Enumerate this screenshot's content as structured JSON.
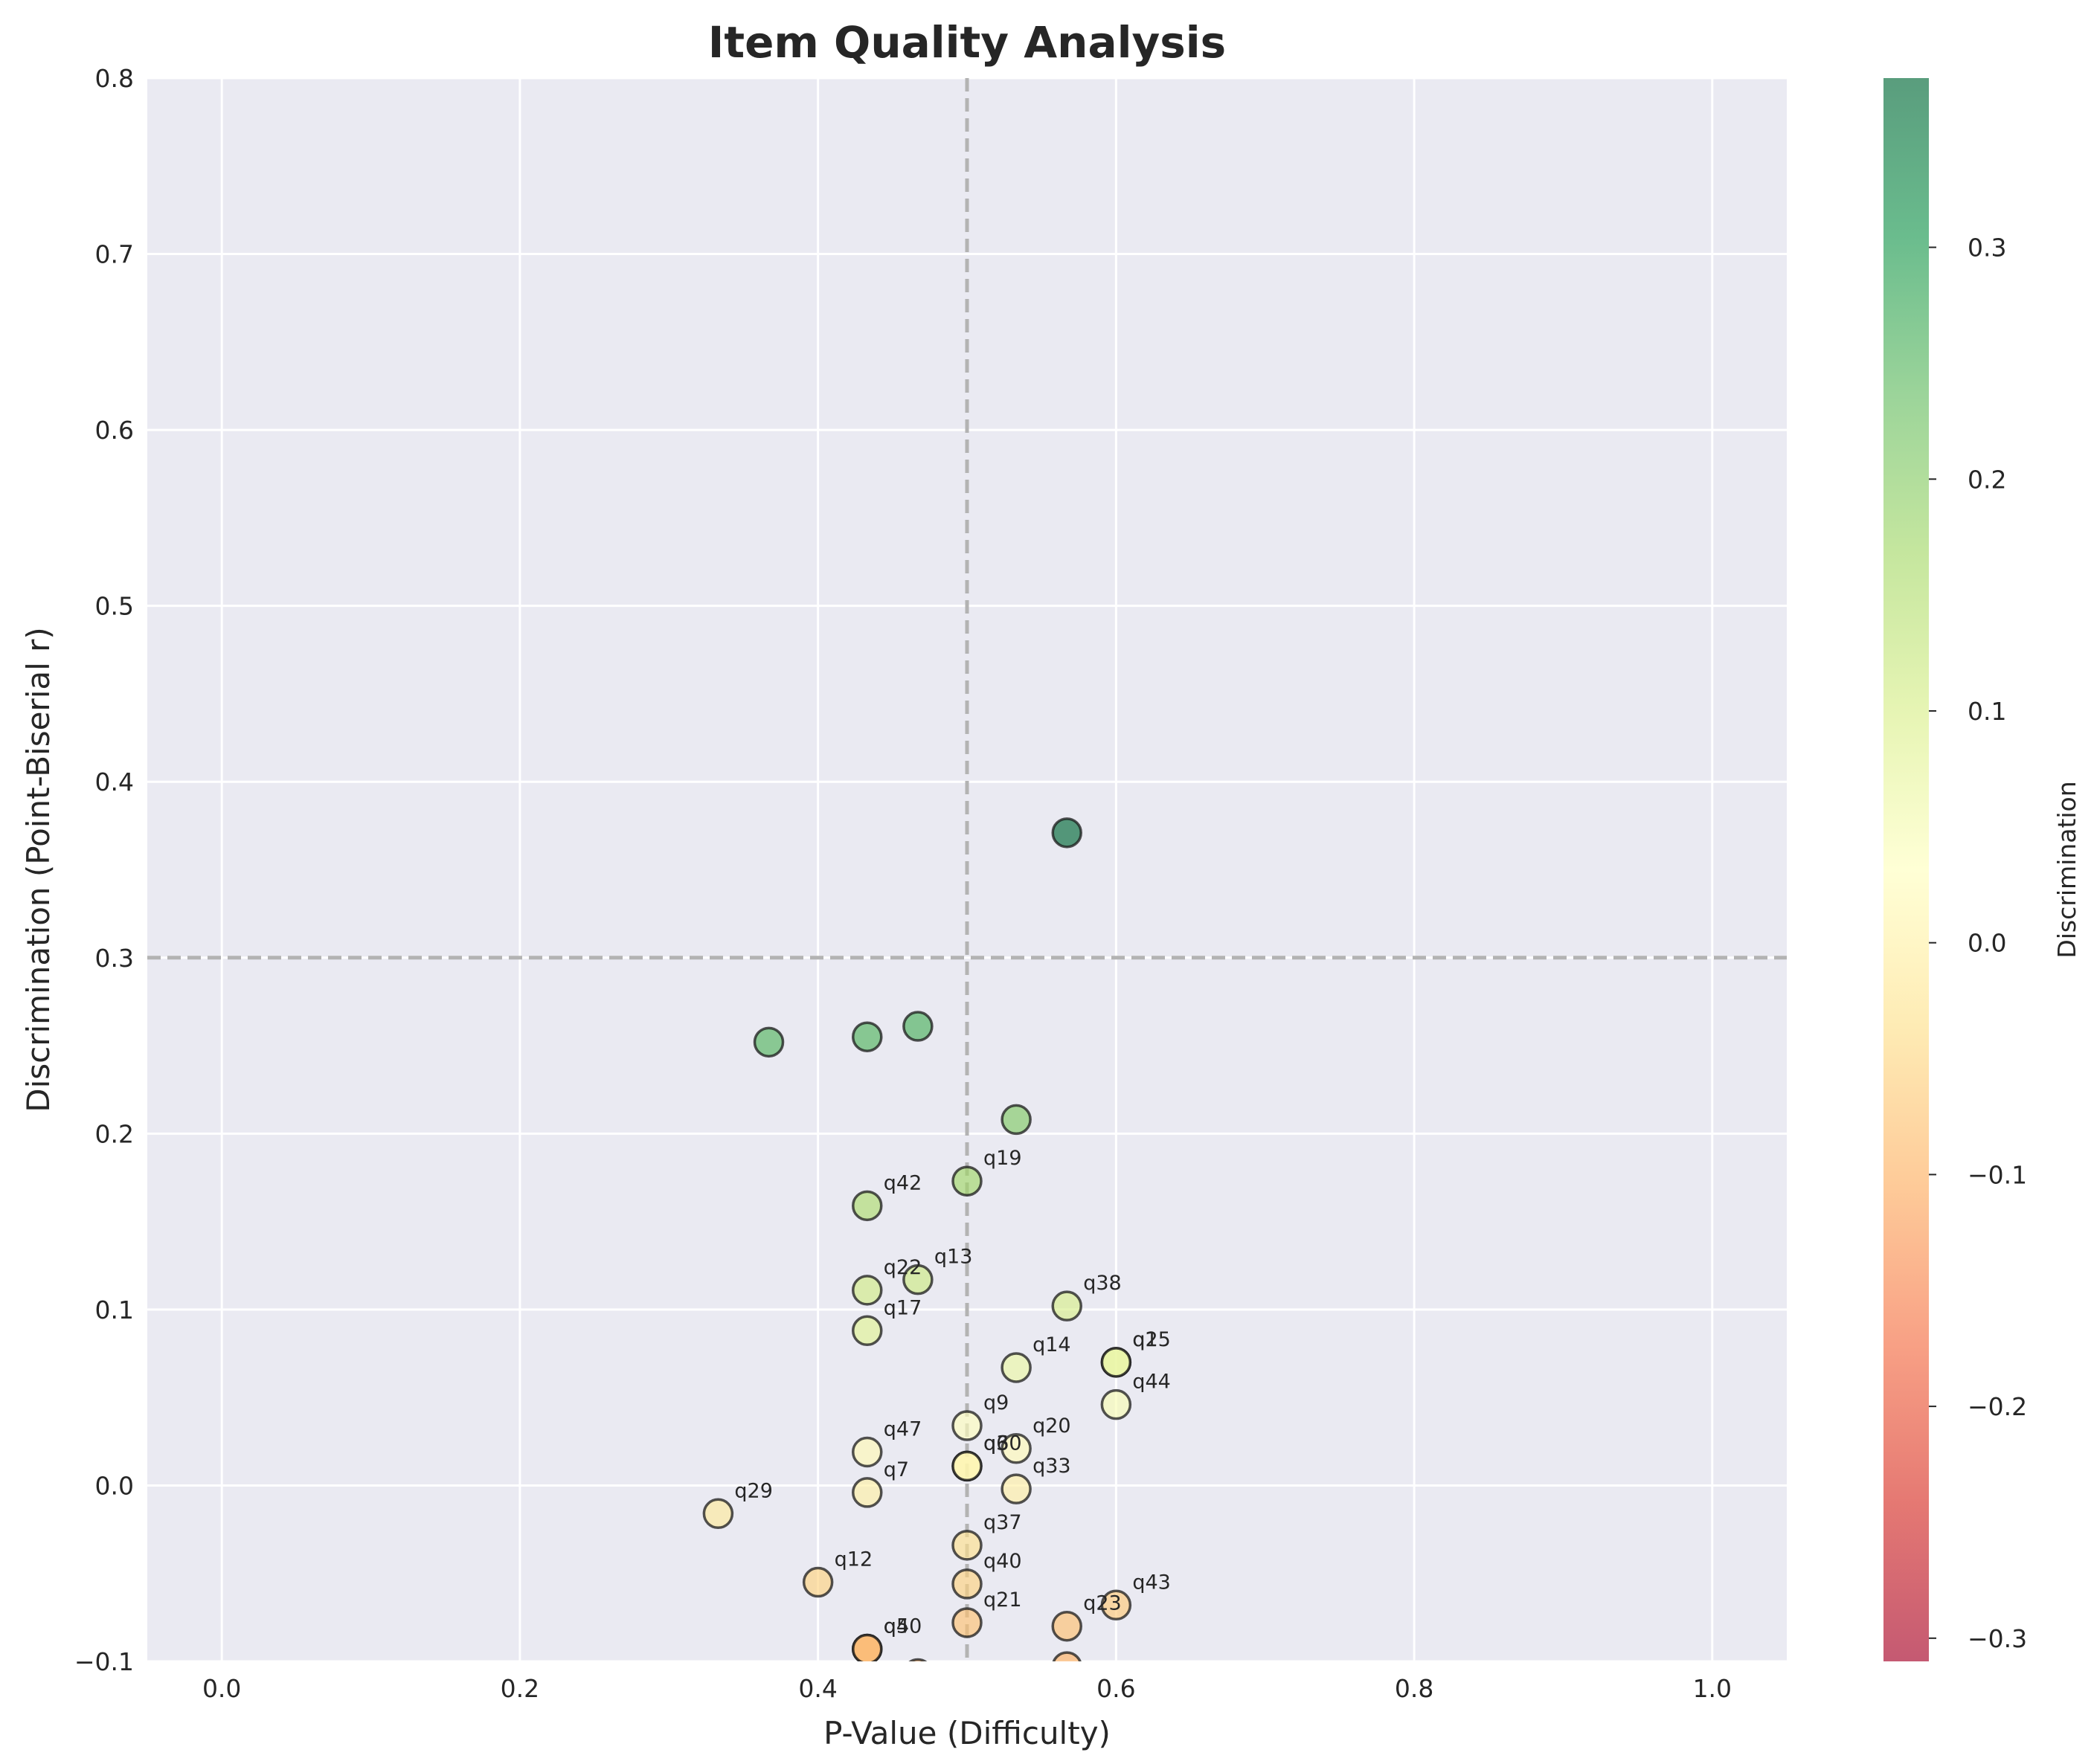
{
  "chart_data": {
    "type": "scatter",
    "title": "Item Quality Analysis",
    "xlabel": "P-Value (Difficulty)",
    "ylabel": "Discrimination (Point-Biserial r)",
    "xlim": [
      -0.05,
      1.05
    ],
    "ylim": [
      -0.1,
      0.8
    ],
    "xticks": [
      "0.0",
      "0.2",
      "0.4",
      "0.6",
      "0.8",
      "1.0"
    ],
    "yticks": [
      "−0.1",
      "0.0",
      "0.1",
      "0.2",
      "0.3",
      "0.4",
      "0.5",
      "0.6",
      "0.7",
      "0.8"
    ],
    "grid": true,
    "reference_lines": {
      "x": 0.5,
      "y": 0.3,
      "style": "dashed"
    },
    "colorbar": {
      "label": "Discrimination",
      "range": [
        -0.31,
        0.373
      ],
      "ticks": [
        "0.3",
        "0.2",
        "0.1",
        "0.0",
        "−0.1",
        "−0.2",
        "−0.3"
      ],
      "colormap": [
        "#a50026",
        "#d73027",
        "#f46d43",
        "#fdae61",
        "#fee08b",
        "#ffffbf",
        "#d9ef8b",
        "#a6d96a",
        "#66bd63",
        "#1a9850",
        "#006837"
      ]
    },
    "points": [
      {
        "x": 0.567,
        "y": 0.371,
        "label": ""
      },
      {
        "x": 0.367,
        "y": 0.252,
        "label": ""
      },
      {
        "x": 0.433,
        "y": 0.255,
        "label": ""
      },
      {
        "x": 0.467,
        "y": 0.261,
        "label": ""
      },
      {
        "x": 0.533,
        "y": 0.208,
        "label": ""
      },
      {
        "x": 0.5,
        "y": 0.173,
        "label": "q19"
      },
      {
        "x": 0.433,
        "y": 0.159,
        "label": "q42"
      },
      {
        "x": 0.433,
        "y": 0.111,
        "label": "q22"
      },
      {
        "x": 0.467,
        "y": 0.117,
        "label": "q13"
      },
      {
        "x": 0.433,
        "y": 0.088,
        "label": "q17"
      },
      {
        "x": 0.567,
        "y": 0.102,
        "label": "q38"
      },
      {
        "x": 0.533,
        "y": 0.067,
        "label": "q14"
      },
      {
        "x": 0.6,
        "y": 0.07,
        "label": "q1"
      },
      {
        "x": 0.6,
        "y": 0.07,
        "label": "q25"
      },
      {
        "x": 0.6,
        "y": 0.046,
        "label": "q44"
      },
      {
        "x": 0.5,
        "y": 0.034,
        "label": "q9"
      },
      {
        "x": 0.433,
        "y": 0.019,
        "label": "q47"
      },
      {
        "x": 0.533,
        "y": 0.021,
        "label": "q20"
      },
      {
        "x": 0.5,
        "y": 0.011,
        "label": "q6"
      },
      {
        "x": 0.5,
        "y": 0.011,
        "label": "q30"
      },
      {
        "x": 0.433,
        "y": -0.004,
        "label": "q7"
      },
      {
        "x": 0.533,
        "y": -0.002,
        "label": "q33"
      },
      {
        "x": 0.333,
        "y": -0.016,
        "label": "q29"
      },
      {
        "x": 0.5,
        "y": -0.034,
        "label": "q37"
      },
      {
        "x": 0.4,
        "y": -0.055,
        "label": "q12"
      },
      {
        "x": 0.5,
        "y": -0.056,
        "label": "q40"
      },
      {
        "x": 0.6,
        "y": -0.068,
        "label": "q43"
      },
      {
        "x": 0.5,
        "y": -0.078,
        "label": "q21"
      },
      {
        "x": 0.567,
        "y": -0.08,
        "label": "q23"
      },
      {
        "x": 0.433,
        "y": -0.093,
        "label": "q4"
      },
      {
        "x": 0.433,
        "y": -0.093,
        "label": "q50"
      },
      {
        "x": 0.467,
        "y": -0.107,
        "label": ""
      },
      {
        "x": 0.567,
        "y": -0.103,
        "label": ""
      }
    ]
  }
}
